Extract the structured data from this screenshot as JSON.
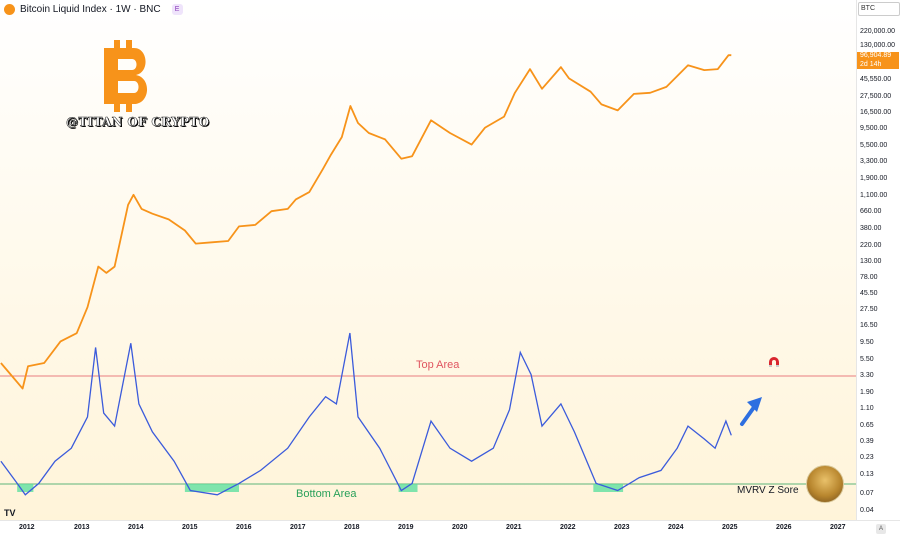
{
  "header": {
    "title": "Bitcoin Liquid Index · 1W · BNC",
    "badge": "E"
  },
  "watermark": "@TITAN OF CRYPTO",
  "logo": {
    "glyph": "B",
    "color": "#f7931a"
  },
  "price_axis": {
    "currency": "BTC",
    "ticks": [
      "220,000.00",
      "130,000.00",
      "45,550.00",
      "27,500.00",
      "16,500.00",
      "9,500.00",
      "5,500.00",
      "3,300.00",
      "1,900.00",
      "1,100.00",
      "660.00",
      "380.00",
      "220.00",
      "130.00",
      "78.00",
      "45.50",
      "27.50",
      "16.50",
      "9.50",
      "5.50",
      "3.30",
      "1.90",
      "1.10",
      "0.65",
      "0.39",
      "0.23",
      "0.13",
      "0.07",
      "0.04"
    ]
  },
  "last_price": {
    "value": "96,904.89",
    "countdown": "2d 14h"
  },
  "time_axis": {
    "ticks": [
      "2012",
      "2013",
      "2014",
      "2015",
      "2016",
      "2017",
      "2018",
      "2019",
      "2020",
      "2021",
      "2022",
      "2023",
      "2024",
      "2025",
      "2026",
      "2027"
    ]
  },
  "annotations": {
    "top": "Top Area",
    "bottom": "Bottom Area",
    "indicator": "MVRV Z Sore"
  },
  "colors": {
    "price": "#f7931a",
    "mvrv": "#3b5bdb",
    "top": "#e05560",
    "bottom": "#29a05a",
    "arrow": "#2e6fe0"
  },
  "chart_data": {
    "type": "line",
    "price_scale": "log",
    "x_range": [
      2011.5,
      2027.3
    ],
    "series": [
      {
        "price": [
          [
            2011.5,
            5
          ],
          [
            2011.75,
            3
          ],
          [
            2011.9,
            2.2
          ],
          [
            2012.0,
            4.5
          ],
          [
            2012.3,
            5
          ],
          [
            2012.6,
            10
          ],
          [
            2012.9,
            13
          ],
          [
            2013.1,
            30
          ],
          [
            2013.3,
            110
          ],
          [
            2013.45,
            90
          ],
          [
            2013.6,
            110
          ],
          [
            2013.85,
            800
          ],
          [
            2013.95,
            1100
          ],
          [
            2014.1,
            700
          ],
          [
            2014.3,
            600
          ],
          [
            2014.6,
            500
          ],
          [
            2014.9,
            350
          ],
          [
            2015.1,
            230
          ],
          [
            2015.4,
            240
          ],
          [
            2015.7,
            250
          ],
          [
            2015.9,
            400
          ],
          [
            2016.2,
            420
          ],
          [
            2016.5,
            650
          ],
          [
            2016.8,
            700
          ],
          [
            2016.95,
            950
          ],
          [
            2017.2,
            1200
          ],
          [
            2017.45,
            2500
          ],
          [
            2017.6,
            4000
          ],
          [
            2017.8,
            7000
          ],
          [
            2017.96,
            19000
          ],
          [
            2018.1,
            11000
          ],
          [
            2018.3,
            8000
          ],
          [
            2018.6,
            6500
          ],
          [
            2018.9,
            3500
          ],
          [
            2019.1,
            3800
          ],
          [
            2019.45,
            12000
          ],
          [
            2019.8,
            8000
          ],
          [
            2020.2,
            5500
          ],
          [
            2020.45,
            9500
          ],
          [
            2020.8,
            13500
          ],
          [
            2021.0,
            29000
          ],
          [
            2021.28,
            62000
          ],
          [
            2021.5,
            33000
          ],
          [
            2021.85,
            66000
          ],
          [
            2022.0,
            46000
          ],
          [
            2022.4,
            30000
          ],
          [
            2022.6,
            20000
          ],
          [
            2022.9,
            16500
          ],
          [
            2023.2,
            28000
          ],
          [
            2023.5,
            29000
          ],
          [
            2023.8,
            35000
          ],
          [
            2024.2,
            70000
          ],
          [
            2024.5,
            60000
          ],
          [
            2024.75,
            62000
          ],
          [
            2024.95,
            97000
          ],
          [
            2025.0,
            96904
          ]
        ]
      },
      {
        "mvrv": [
          [
            2011.5,
            0.2
          ],
          [
            2011.8,
            0.1
          ],
          [
            2011.95,
            0.07
          ],
          [
            2012.2,
            0.1
          ],
          [
            2012.5,
            0.2
          ],
          [
            2012.8,
            0.3
          ],
          [
            2013.1,
            0.8
          ],
          [
            2013.25,
            7
          ],
          [
            2013.4,
            0.9
          ],
          [
            2013.6,
            0.6
          ],
          [
            2013.9,
            8
          ],
          [
            2014.05,
            1.2
          ],
          [
            2014.3,
            0.5
          ],
          [
            2014.7,
            0.2
          ],
          [
            2015.0,
            0.08
          ],
          [
            2015.5,
            0.07
          ],
          [
            2015.9,
            0.1
          ],
          [
            2016.3,
            0.15
          ],
          [
            2016.8,
            0.3
          ],
          [
            2017.2,
            0.8
          ],
          [
            2017.5,
            1.5
          ],
          [
            2017.7,
            1.2
          ],
          [
            2017.95,
            11
          ],
          [
            2018.1,
            0.8
          ],
          [
            2018.5,
            0.3
          ],
          [
            2018.9,
            0.08
          ],
          [
            2019.1,
            0.1
          ],
          [
            2019.45,
            0.7
          ],
          [
            2019.8,
            0.3
          ],
          [
            2020.2,
            0.2
          ],
          [
            2020.6,
            0.3
          ],
          [
            2020.9,
            1
          ],
          [
            2021.1,
            6
          ],
          [
            2021.3,
            3
          ],
          [
            2021.5,
            0.6
          ],
          [
            2021.85,
            1.2
          ],
          [
            2022.1,
            0.5
          ],
          [
            2022.5,
            0.1
          ],
          [
            2022.9,
            0.08
          ],
          [
            2023.3,
            0.12
          ],
          [
            2023.7,
            0.15
          ],
          [
            2024.0,
            0.3
          ],
          [
            2024.2,
            0.6
          ],
          [
            2024.5,
            0.4
          ],
          [
            2024.7,
            0.3
          ],
          [
            2024.9,
            0.7
          ],
          [
            2025.0,
            0.45
          ]
        ]
      }
    ],
    "thresholds": {
      "top": "Top Area",
      "bottom": "Bottom Area"
    }
  }
}
